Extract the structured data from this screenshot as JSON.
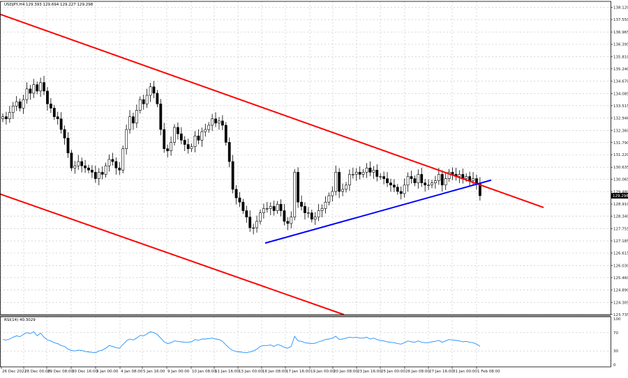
{
  "chart_data": [
    {
      "type": "candlestick",
      "header": "USDJPY,H4 129.393 129.694 129.227 129.298",
      "symbol": "USDJPY",
      "timeframe": "H4",
      "ohlc_header": {
        "open": 129.393,
        "high": 129.694,
        "low": 129.227,
        "close": 129.298
      },
      "current_price_label": "129.298",
      "grid": true,
      "ylim": [
        123.73,
        138.4
      ],
      "yticks": [
        "138.120",
        "137.550",
        "136.965",
        "136.395",
        "135.810",
        "135.240",
        "134.670",
        "134.085",
        "133.515",
        "132.946",
        "132.360",
        "131.790",
        "131.220",
        "130.635",
        "130.065",
        "129.480",
        "128.910",
        "128.340",
        "127.755",
        "127.185",
        "126.615",
        "126.030",
        "125.460",
        "124.890",
        "124.305",
        "123.735"
      ],
      "xticks": [
        "26 Dec 2022",
        "28 Dec 00:00",
        "29 Dec 08:00",
        "30 Dec 16:00",
        "3 Jan 00:00",
        "4 Jan 08:00",
        "5 Jan 16:00",
        "9 Jan 00:00",
        "10 Jan 08:00",
        "11 Jan 16:00",
        "13 Jan 00:00",
        "16 Jan 08:00",
        "17 Jan 16:00",
        "19 Jan 00:00",
        "20 Jan 08:00",
        "23 Jan 16:00",
        "25 Jan 00:00",
        "26 Jan 08:00",
        "27 Jan 16:00",
        "31 Jan 00:00",
        "1 Feb 08:00"
      ],
      "colors": {
        "up": "#ffffff",
        "down": "#000000",
        "wick": "#000000",
        "channel": "#ff0000",
        "support": "#0000ff",
        "grid": "#c0c0c0"
      },
      "closes": [
        133.0,
        132.9,
        133.2,
        133.5,
        133.7,
        133.4,
        133.8,
        134.3,
        134.1,
        134.5,
        134.2,
        134.6,
        134.2,
        133.6,
        133.4,
        133.0,
        132.9,
        132.4,
        132.0,
        131.3,
        130.6,
        130.7,
        130.9,
        130.7,
        130.6,
        130.5,
        130.4,
        130.1,
        130.4,
        130.3,
        130.7,
        131.0,
        130.9,
        130.6,
        130.5,
        131.5,
        132.4,
        133.0,
        132.7,
        133.3,
        133.8,
        133.6,
        134.0,
        134.4,
        134.1,
        133.6,
        132.4,
        131.5,
        131.4,
        131.8,
        132.5,
        132.2,
        131.9,
        131.7,
        131.5,
        131.6,
        132.1,
        131.9,
        132.3,
        132.4,
        132.6,
        132.9,
        132.7,
        132.8,
        132.6,
        131.8,
        130.9,
        129.6,
        129.2,
        129.0,
        128.6,
        128.3,
        127.8,
        127.8,
        128.1,
        128.5,
        128.7,
        128.7,
        128.8,
        128.6,
        128.9,
        128.6,
        128.1,
        128.0,
        128.3,
        130.4,
        129.0,
        128.8,
        128.5,
        128.5,
        128.2,
        128.3,
        128.6,
        128.7,
        129.0,
        129.3,
        129.5,
        130.4,
        129.5,
        129.6,
        129.8,
        130.3,
        130.3,
        130.4,
        130.3,
        130.4,
        130.6,
        130.4,
        130.5,
        130.2,
        130.2,
        130.1,
        129.9,
        129.8,
        129.7,
        129.5,
        129.4,
        129.8,
        130.2,
        130.1,
        129.9,
        130.3,
        129.9,
        129.8,
        129.8,
        129.9,
        130.0,
        130.3,
        129.8,
        130.1,
        130.4,
        130.3,
        130.2,
        130.3,
        130.1,
        130.2,
        130.0,
        130.1,
        129.9,
        129.3
      ],
      "channel_upper": {
        "from": {
          "date": "26 Dec 2022",
          "price": 137.8
        },
        "to": {
          "date": "2 Feb",
          "price": 128.75
        }
      },
      "channel_lower": {
        "from": {
          "date": "26 Dec 2022",
          "price": 129.38
        },
        "to": {
          "date": "19 Jan",
          "price": 123.73
        }
      },
      "support_line": {
        "from": {
          "date": "16 Jan",
          "price": 127.08
        },
        "to": {
          "date": "1 Feb",
          "price": 130.03
        }
      }
    },
    {
      "type": "line",
      "header": "RSI(14) 40.3029",
      "name": "RSI(14)",
      "value": 40.3029,
      "ylim": [
        0,
        100
      ],
      "yticks": [
        "100",
        "70",
        "30",
        "0"
      ],
      "color": "#1e90ff",
      "values": [
        55,
        54,
        56,
        60,
        63,
        61,
        66,
        70,
        68,
        72,
        63,
        69,
        60,
        54,
        52,
        48,
        46,
        42,
        40,
        34,
        31,
        30,
        32,
        31,
        29,
        28,
        27,
        26,
        30,
        32,
        36,
        42,
        40,
        37,
        36,
        44,
        52,
        56,
        54,
        58,
        64,
        63,
        67,
        72,
        70,
        66,
        58,
        50,
        46,
        48,
        52,
        51,
        50,
        49,
        49,
        50,
        55,
        53,
        56,
        56,
        57,
        58,
        56,
        55,
        51,
        43,
        36,
        31,
        29,
        28,
        27,
        26,
        28,
        30,
        34,
        40,
        42,
        42,
        43,
        40,
        44,
        42,
        38,
        36,
        40,
        62,
        52,
        51,
        48,
        47,
        46,
        47,
        50,
        52,
        55,
        56,
        58,
        62,
        55,
        56,
        58,
        60,
        59,
        60,
        58,
        58,
        60,
        56,
        58,
        55,
        53,
        52,
        50,
        49,
        48,
        46,
        45,
        48,
        52,
        50,
        49,
        52,
        49,
        48,
        48,
        50,
        51,
        53,
        49,
        52,
        55,
        54,
        53,
        52,
        50,
        51,
        49,
        48,
        45,
        40
      ]
    }
  ]
}
